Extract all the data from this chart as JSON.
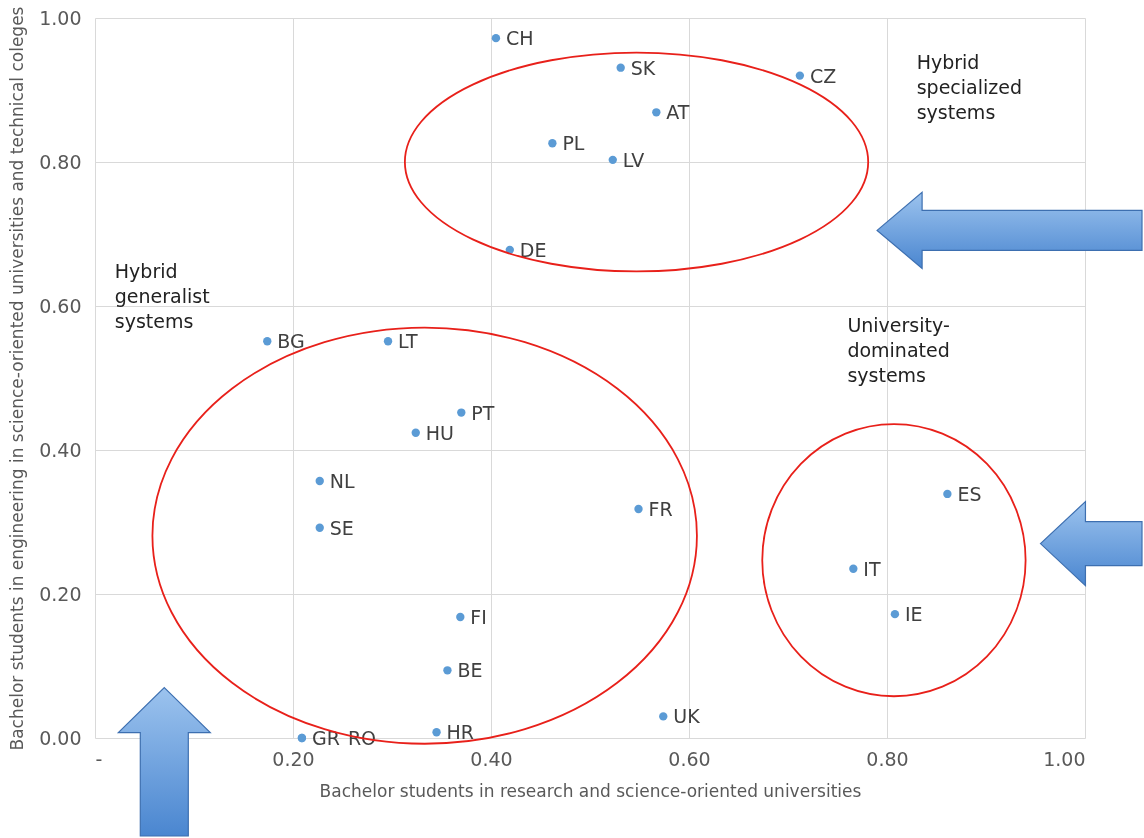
{
  "chart_data": {
    "type": "scatter",
    "xlabel": "Bachelor students in research and science-oriented universities",
    "ylabel": "Bachelor students in engineering in science-oriented universities and technical coleges",
    "xlim": [
      0,
      1
    ],
    "xticks": [
      {
        "value": 0,
        "label": "-"
      },
      {
        "value": 0.2,
        "label": "0.20"
      },
      {
        "value": 0.4,
        "label": "0.40"
      },
      {
        "value": 0.6,
        "label": "0.60"
      },
      {
        "value": 0.8,
        "label": "0.80"
      },
      {
        "value": 1,
        "label": "1.00"
      }
    ],
    "ylim": [
      0,
      1
    ],
    "yticks": [
      {
        "value": 0,
        "label": "0.00"
      },
      {
        "value": 0.2,
        "label": "0.20"
      },
      {
        "value": 0.4,
        "label": "0.40"
      },
      {
        "value": 0.6,
        "label": "0.60"
      },
      {
        "value": 0.8,
        "label": "0.80"
      },
      {
        "value": 1,
        "label": "1.00"
      }
    ],
    "grid": true,
    "marker": "circle",
    "annotations": [
      "Hybrid specialized systems",
      "Hybrid generalist systems",
      "University-dominated systems"
    ],
    "series": [
      {
        "name": "CH",
        "color": "#5b9bd5",
        "x": [
          0.405
        ],
        "values": [
          0.972
        ]
      },
      {
        "name": "SK",
        "color": "#5b9bd5",
        "x": [
          0.531
        ],
        "values": [
          0.931
        ]
      },
      {
        "name": "CZ",
        "color": "#5b9bd5",
        "x": [
          0.712
        ],
        "values": [
          0.92
        ]
      },
      {
        "name": "AT",
        "color": "#5b9bd5",
        "x": [
          0.567
        ],
        "values": [
          0.869
        ]
      },
      {
        "name": "PL",
        "color": "#5b9bd5",
        "x": [
          0.462
        ],
        "values": [
          0.826
        ]
      },
      {
        "name": "LV",
        "color": "#5b9bd5",
        "x": [
          0.523
        ],
        "values": [
          0.803
        ]
      },
      {
        "name": "DE",
        "color": "#5b9bd5",
        "x": [
          0.419
        ],
        "values": [
          0.678
        ]
      },
      {
        "name": "BG",
        "color": "#5b9bd5",
        "x": [
          0.174
        ],
        "values": [
          0.551
        ]
      },
      {
        "name": "LT",
        "color": "#5b9bd5",
        "x": [
          0.296
        ],
        "values": [
          0.551
        ]
      },
      {
        "name": "PT",
        "color": "#5b9bd5",
        "x": [
          0.37
        ],
        "values": [
          0.452
        ]
      },
      {
        "name": "HU",
        "color": "#5b9bd5",
        "x": [
          0.324
        ],
        "values": [
          0.424
        ]
      },
      {
        "name": "NL",
        "color": "#5b9bd5",
        "x": [
          0.227
        ],
        "values": [
          0.357
        ]
      },
      {
        "name": "SE",
        "color": "#5b9bd5",
        "x": [
          0.227
        ],
        "values": [
          0.292
        ]
      },
      {
        "name": "FR",
        "color": "#5b9bd5",
        "x": [
          0.549
        ],
        "values": [
          0.318
        ]
      },
      {
        "name": "FI",
        "color": "#5b9bd5",
        "x": [
          0.369
        ],
        "values": [
          0.168
        ]
      },
      {
        "name": "BE",
        "color": "#5b9bd5",
        "x": [
          0.356
        ],
        "values": [
          0.094
        ]
      },
      {
        "name": "HR",
        "color": "#5b9bd5",
        "x": [
          0.345
        ],
        "values": [
          0.008
        ]
      },
      {
        "name": "UK",
        "color": "#5b9bd5",
        "x": [
          0.574
        ],
        "values": [
          0.03
        ]
      },
      {
        "name": "GR",
        "color": "#5b9bd5",
        "x": [
          0.209
        ],
        "values": [
          0
        ]
      },
      {
        "name": "RO",
        "color": "#5b9bd5",
        "x": [
          0.209
        ],
        "values": [
          0
        ]
      },
      {
        "name": "ES",
        "color": "#5b9bd5",
        "x": [
          0.861
        ],
        "values": [
          0.339
        ]
      },
      {
        "name": "IT",
        "color": "#5b9bd5",
        "x": [
          0.766
        ],
        "values": [
          0.235
        ]
      },
      {
        "name": "IE",
        "color": "#5b9bd5",
        "x": [
          0.808
        ],
        "values": [
          0.172
        ]
      }
    ]
  }
}
